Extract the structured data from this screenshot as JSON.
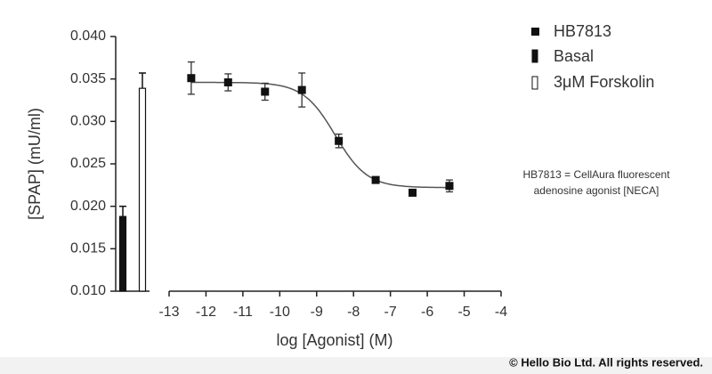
{
  "chart_data": {
    "type": "scatter",
    "ylabel": "[SPAP] (mU/ml)",
    "xlabel": "log [Agonist] (M)",
    "ylim": [
      0.01,
      0.04
    ],
    "yticks": [
      {
        "value": 0.01,
        "label": "0.010"
      },
      {
        "value": 0.015,
        "label": "0.015"
      },
      {
        "value": 0.02,
        "label": "0.020"
      },
      {
        "value": 0.025,
        "label": "0.025"
      },
      {
        "value": 0.03,
        "label": "0.030"
      },
      {
        "value": 0.035,
        "label": "0.035"
      },
      {
        "value": 0.04,
        "label": "0.040"
      }
    ],
    "xlim": [
      -13,
      -4
    ],
    "xticks": [
      -13,
      -12,
      -11,
      -10,
      -9,
      -8,
      -7,
      -6,
      -5,
      -4
    ],
    "series": [
      {
        "name": "HB7813",
        "color": "#111111",
        "x": [
          -12.4,
          -11.4,
          -10.4,
          -9.4,
          -8.4,
          -7.4,
          -6.4,
          -5.4
        ],
        "values": [
          0.0351,
          0.0346,
          0.0335,
          0.0337,
          0.0277,
          0.0231,
          0.0216,
          0.0224
        ],
        "errors": [
          0.0019,
          0.001,
          0.001,
          0.002,
          0.0008,
          0.0003,
          0.0002,
          0.0007
        ]
      }
    ],
    "fit": {
      "top": 0.0346,
      "bottom": 0.0222,
      "log_ec50": -8.5,
      "hill": 1
    },
    "bars": {
      "categories": [
        "Basal",
        "3μM Forskolin"
      ],
      "values": [
        0.0188,
        0.0339
      ],
      "errors": [
        0.0012,
        0.0018
      ],
      "colors": [
        "#111111",
        "#ffffff"
      ]
    },
    "annotation": [
      "HB7813 = CellAura fluorescent",
      "adenosine agonist [NECA]"
    ]
  },
  "footer": "© Hello Bio Ltd. All rights reserved."
}
